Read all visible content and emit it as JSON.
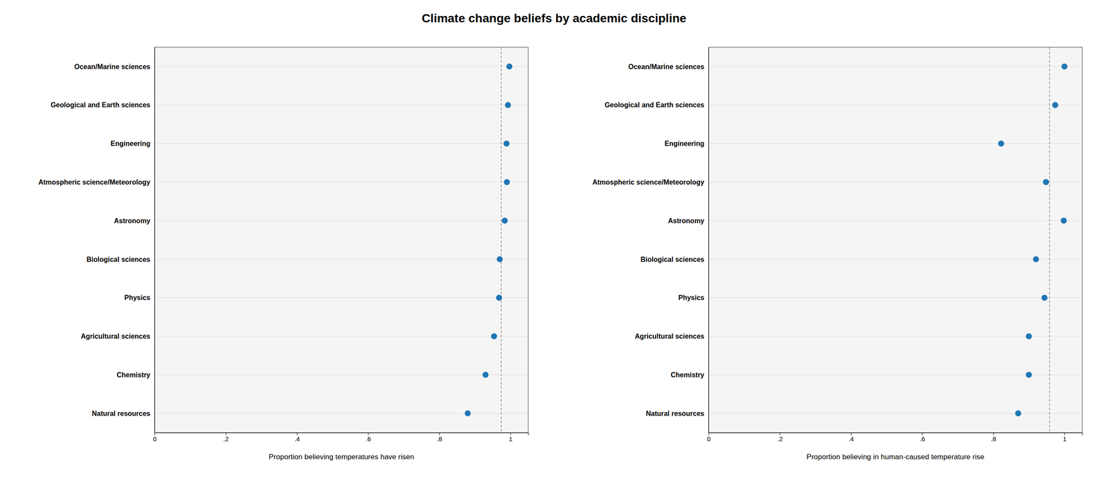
{
  "chart_data": [
    {
      "type": "dot",
      "title": "Climate change beliefs by academic discipline",
      "categories": [
        "Ocean/Marine sciences",
        "Geological and Earth sciences",
        "Engineering",
        "Atmospheric science/Meteorology",
        "Astronomy",
        "Biological sciences",
        "Physics",
        "Agricultural sciences",
        "Chemistry",
        "Natural resources"
      ],
      "values": [
        0.997,
        0.993,
        0.989,
        0.99,
        0.984,
        0.97,
        0.968,
        0.954,
        0.93,
        0.88
      ],
      "avg_line": 0.974,
      "xlabel": "Proportion believing temperatures have risen",
      "xlim": [
        0,
        1.05
      ],
      "xticks": [
        0,
        {
          "value": 0.2,
          "label": ".2"
        },
        {
          "value": 0.4,
          "label": ".4"
        },
        {
          "value": 0.6,
          "label": ".6"
        },
        {
          "value": 0.8,
          "label": ".8"
        },
        1
      ],
      "grid": true
    },
    {
      "type": "dot",
      "categories": [
        "Ocean/Marine sciences",
        "Geological and Earth sciences",
        "Engineering",
        "Atmospheric science/Meteorology",
        "Astronomy",
        "Biological sciences",
        "Physics",
        "Agricultural sciences",
        "Chemistry",
        "Natural resources"
      ],
      "values": [
        1.0,
        0.974,
        0.822,
        0.948,
        0.998,
        0.92,
        0.944,
        0.9,
        0.9,
        0.87
      ],
      "avg_line": 0.958,
      "xlabel": "Proportion believing in human-caused temperature rise",
      "xlim": [
        0,
        1.05
      ],
      "xticks": [
        0,
        {
          "value": 0.2,
          "label": ".2"
        },
        {
          "value": 0.4,
          "label": ".4"
        },
        {
          "value": 0.6,
          "label": ".6"
        },
        {
          "value": 0.8,
          "label": ".8"
        },
        1
      ],
      "grid": true
    }
  ]
}
